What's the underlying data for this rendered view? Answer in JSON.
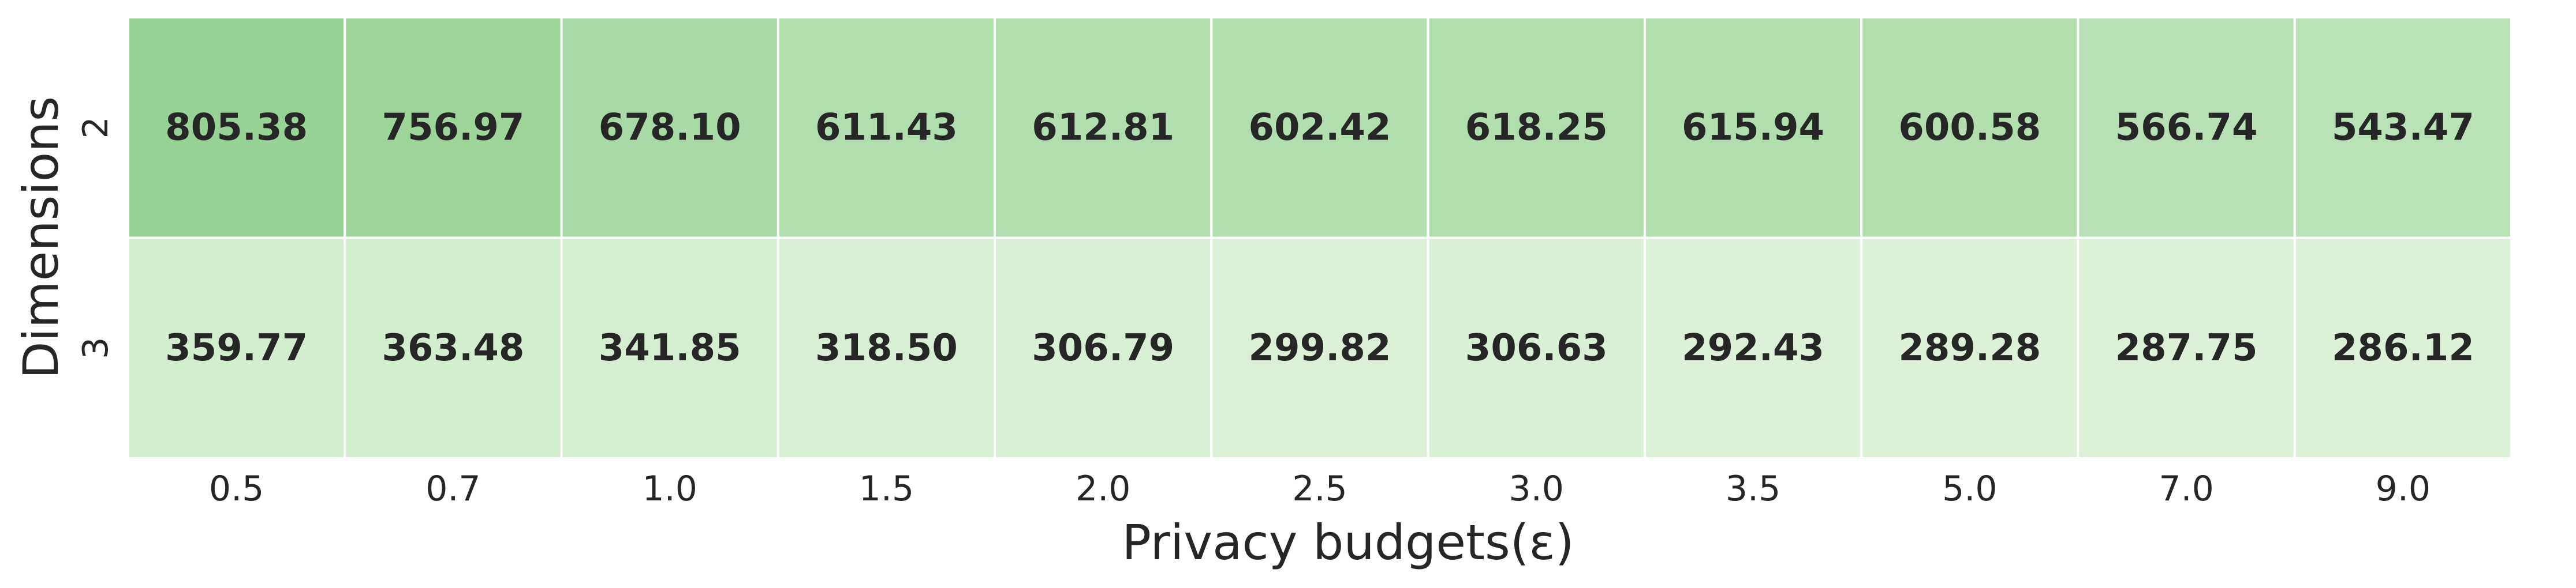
{
  "chart_data": {
    "type": "heatmap",
    "xlabel": "Privacy budgets(ε)",
    "ylabel": "Dimensions",
    "x_categories": [
      "0.5",
      "0.7",
      "1.0",
      "1.5",
      "2.0",
      "2.5",
      "3.0",
      "3.5",
      "5.0",
      "7.0",
      "9.0"
    ],
    "y_categories": [
      "2",
      "3"
    ],
    "values": [
      [
        805.38,
        756.97,
        678.1,
        611.43,
        612.81,
        602.42,
        618.25,
        615.94,
        600.58,
        566.74,
        543.47
      ],
      [
        359.77,
        363.48,
        341.85,
        318.5,
        306.79,
        299.82,
        306.63,
        292.43,
        289.28,
        287.75,
        286.12
      ]
    ],
    "value_labels": [
      [
        "805.38",
        "756.97",
        "678.10",
        "611.43",
        "612.81",
        "602.42",
        "618.25",
        "615.94",
        "600.58",
        "566.74",
        "543.47"
      ],
      [
        "359.77",
        "363.48",
        "341.85",
        "318.50",
        "306.79",
        "299.82",
        "306.63",
        "292.43",
        "289.28",
        "287.75",
        "286.12"
      ]
    ],
    "colormap": "Greens",
    "color_range_hex": [
      "#ddf1d9",
      "#97d394"
    ],
    "colorbar": false,
    "grid": false
  }
}
